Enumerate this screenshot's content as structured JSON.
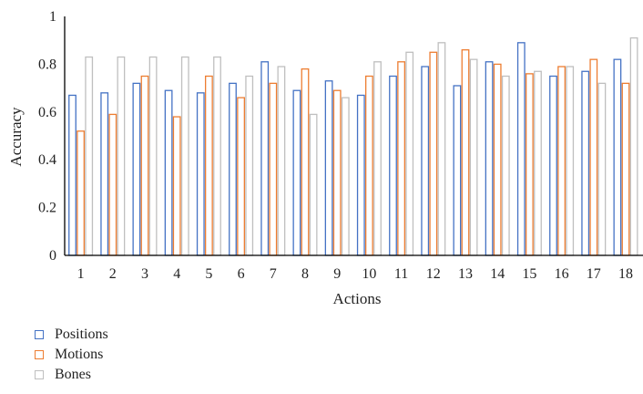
{
  "chart_data": {
    "type": "bar",
    "categories": [
      "1",
      "2",
      "3",
      "4",
      "5",
      "6",
      "7",
      "8",
      "9",
      "10",
      "11",
      "12",
      "13",
      "14",
      "15",
      "16",
      "17",
      "18"
    ],
    "series": [
      {
        "name": "Positions",
        "color": "#4472C4",
        "values": [
          0.67,
          0.68,
          0.72,
          0.69,
          0.68,
          0.72,
          0.81,
          0.69,
          0.73,
          0.67,
          0.75,
          0.79,
          0.71,
          0.81,
          0.89,
          0.75,
          0.77,
          0.82
        ]
      },
      {
        "name": "Motions",
        "color": "#ED7D31",
        "values": [
          0.52,
          0.59,
          0.75,
          0.58,
          0.75,
          0.66,
          0.72,
          0.78,
          0.69,
          0.75,
          0.81,
          0.85,
          0.86,
          0.8,
          0.76,
          0.79,
          0.82,
          0.72
        ]
      },
      {
        "name": "Bones",
        "color": "#BFBFBF",
        "values": [
          0.83,
          0.83,
          0.83,
          0.83,
          0.83,
          0.75,
          0.79,
          0.59,
          0.66,
          0.81,
          0.85,
          0.89,
          0.82,
          0.75,
          0.77,
          0.79,
          0.72,
          0.91
        ]
      }
    ],
    "xlabel": "Actions",
    "ylabel": "Accuracy",
    "ylim": [
      0,
      1
    ],
    "yticks": [
      "0",
      "0.2",
      "0.4",
      "0.6",
      "0.8",
      "1"
    ],
    "legend_position": "bottom-left",
    "grid": false
  }
}
